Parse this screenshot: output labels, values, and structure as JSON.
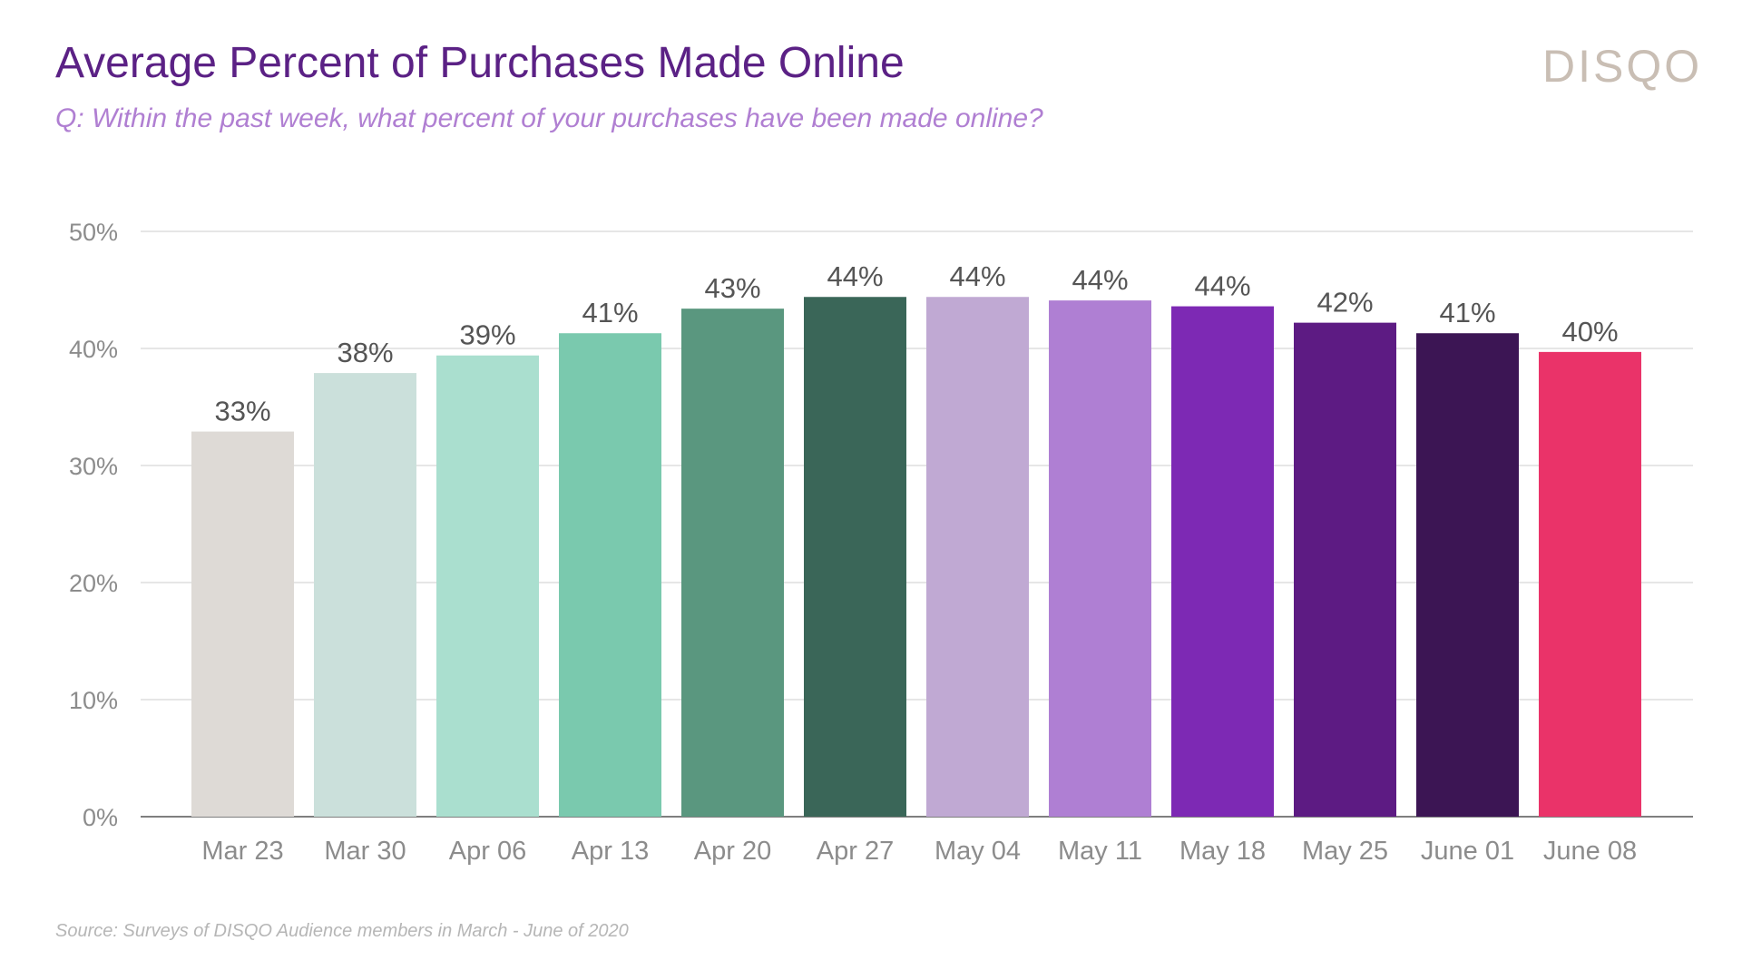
{
  "header": {
    "title": "Average Percent of Purchases Made Online",
    "subtitle": "Q: Within the past week, what percent of your purchases have been made online?",
    "logo_text": "DISQO"
  },
  "footer": {
    "source": "Source: Surveys of DISQO Audience members in March - June of 2020"
  },
  "chart_data": {
    "type": "bar",
    "title": "Average Percent of Purchases Made Online",
    "xlabel": "",
    "ylabel": "",
    "ylim": [
      0,
      50
    ],
    "yticks": [
      0,
      10,
      20,
      30,
      40,
      50
    ],
    "ytick_labels": [
      "0%",
      "10%",
      "20%",
      "30%",
      "40%",
      "50%"
    ],
    "grid": true,
    "legend": "none",
    "categories": [
      "Mar 23",
      "Mar 30",
      "Apr 06",
      "Apr 13",
      "Apr 20",
      "Apr 27",
      "May 04",
      "May 11",
      "May 18",
      "May 25",
      "June 01",
      "June 08"
    ],
    "values": [
      32.9,
      37.9,
      39.4,
      41.3,
      43.4,
      44.4,
      44.4,
      44.1,
      43.6,
      42.2,
      41.3,
      39.7
    ],
    "data_labels": [
      "33%",
      "38%",
      "39%",
      "41%",
      "43%",
      "44%",
      "44%",
      "44%",
      "44%",
      "42%",
      "41%",
      "40%"
    ],
    "colors": [
      "#dedad6",
      "#cbe0db",
      "#aadfcf",
      "#7ac9ae",
      "#5a977f",
      "#3a6658",
      "#c0a9d3",
      "#af7fd3",
      "#7d29b4",
      "#5d1b83",
      "#3c1554",
      "#ea3369"
    ]
  }
}
